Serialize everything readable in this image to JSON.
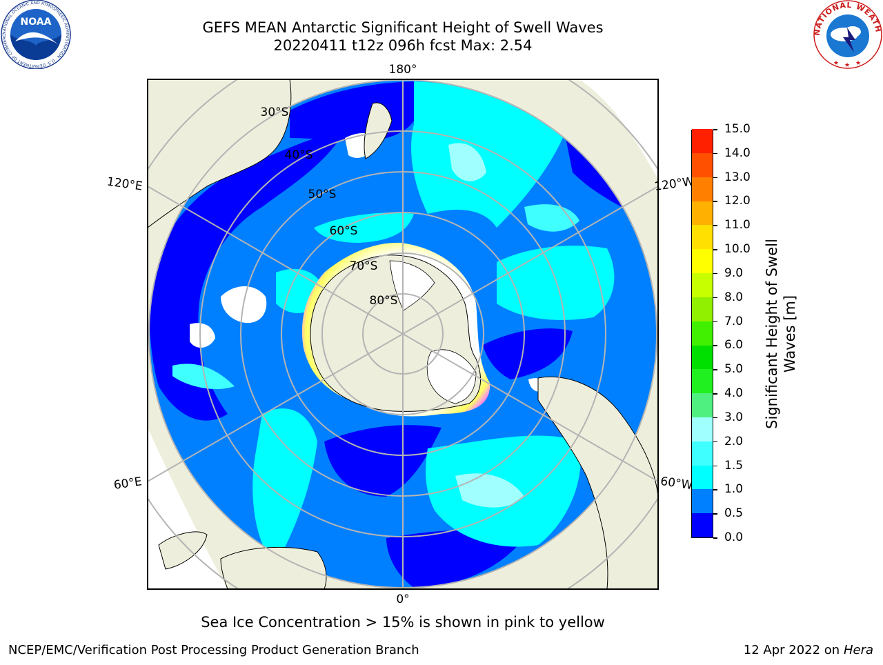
{
  "header": {
    "title_line1": "GEFS MEAN Antarctic Significant Height of Swell Waves",
    "title_line2": "20220411 t12z 096h fcst   Max: 2.54"
  },
  "logos": {
    "noaa_text": "NOAA",
    "noaa_ring_text": "NATIONAL OCEANIC AND ATMOSPHERIC ADMINISTRATION · U.S. DEPARTMENT OF COMMERCE",
    "nws_ring_text": "NATIONAL WEATHER SERVICE"
  },
  "map": {
    "longitude_labels": [
      "180°",
      "120°E",
      "120°W",
      "60°E",
      "60°W",
      "0°"
    ],
    "latitude_labels": [
      "30°S",
      "40°S",
      "50°S",
      "60°S",
      "70°S",
      "80°S"
    ],
    "colors": {
      "land": "#eeeedc",
      "ice_free_zero": "#ffffff",
      "grid": "#b4b4b4"
    }
  },
  "colorbar": {
    "label": "Significant Height of Swell Waves [m]",
    "ticks": [
      "0.0",
      "0.5",
      "1.0",
      "1.5",
      "2.0",
      "3.0",
      "4.0",
      "5.0",
      "6.0",
      "7.0",
      "8.0",
      "9.0",
      "10.0",
      "11.0",
      "12.0",
      "13.0",
      "14.0",
      "15.0"
    ],
    "colors": [
      "#0000ff",
      "#0080ff",
      "#00ffff",
      "#40ffff",
      "#a0ffff",
      "#50f080",
      "#20f020",
      "#00e000",
      "#40f000",
      "#90f000",
      "#c8ff00",
      "#ffff00",
      "#ffe000",
      "#ffb000",
      "#ff8000",
      "#ff5000",
      "#ff2000",
      "#ff0000"
    ]
  },
  "notes": {
    "sea_ice": "Sea Ice Concentration > 15% is shown in pink to yellow",
    "footer_left": "NCEP/EMC/Verification Post Processing Product Generation Branch",
    "footer_right_prefix": "12 Apr 2022 on ",
    "footer_right_host": "Hera"
  }
}
